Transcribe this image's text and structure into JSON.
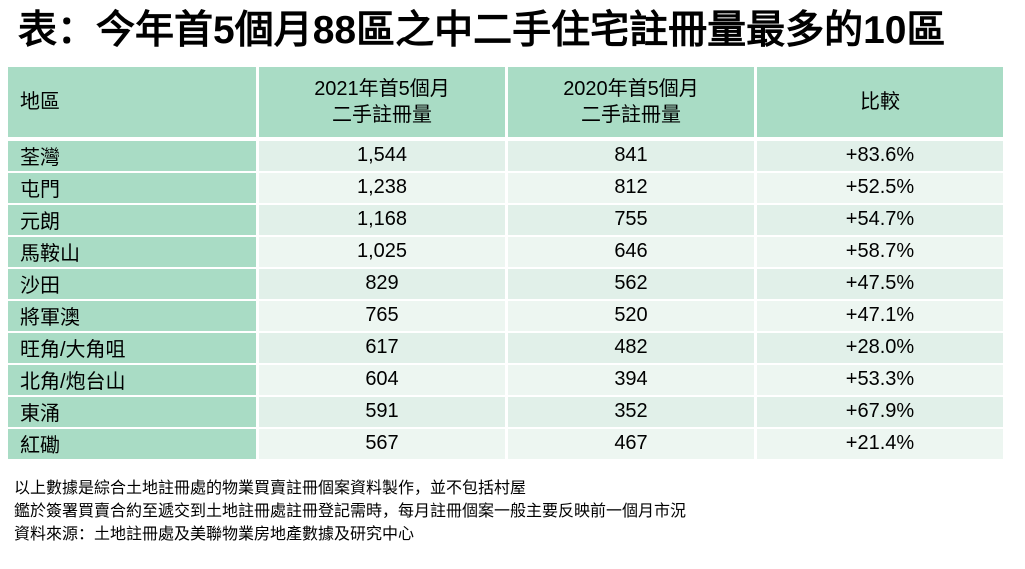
{
  "page": {
    "title": "表：今年首5個月88區之中二手住宅註冊量最多的10區",
    "background": "#ffffff"
  },
  "colors": {
    "header_bg": "#a9dcc5",
    "district_column_bg": "#a9dcc5",
    "row_odd_bg": "#e1f0e9",
    "row_even_bg": "#edf6f1",
    "text": "#000000"
  },
  "table": {
    "headers": {
      "district": "地區",
      "y2021": "2021年首5個月\n二手註冊量",
      "y2020": "2020年首5個月\n二手註冊量",
      "comparison": "比較"
    }
  },
  "chart_data": {
    "type": "table",
    "title": "表：今年首5個月88區之中二手住宅註冊量最多的10區",
    "columns": [
      "地區",
      "2021年首5個月二手註冊量",
      "2020年首5個月二手註冊量",
      "比較"
    ],
    "rows": [
      {
        "district": "荃灣",
        "y2021": "1,544",
        "y2020": "841",
        "change": "+83.6%"
      },
      {
        "district": "屯門",
        "y2021": "1,238",
        "y2020": "812",
        "change": "+52.5%"
      },
      {
        "district": "元朗",
        "y2021": "1,168",
        "y2020": "755",
        "change": "+54.7%"
      },
      {
        "district": "馬鞍山",
        "y2021": "1,025",
        "y2020": "646",
        "change": "+58.7%"
      },
      {
        "district": "沙田",
        "y2021": "829",
        "y2020": "562",
        "change": "+47.5%"
      },
      {
        "district": "將軍澳",
        "y2021": "765",
        "y2020": "520",
        "change": "+47.1%"
      },
      {
        "district": "旺角/大角咀",
        "y2021": "617",
        "y2020": "482",
        "change": "+28.0%"
      },
      {
        "district": "北角/炮台山",
        "y2021": "604",
        "y2020": "394",
        "change": "+53.3%"
      },
      {
        "district": "東涌",
        "y2021": "591",
        "y2020": "352",
        "change": "+67.9%"
      },
      {
        "district": "紅磡",
        "y2021": "567",
        "y2020": "467",
        "change": "+21.4%"
      }
    ]
  },
  "footnotes": [
    "以上數據是綜合土地註冊處的物業買賣註冊個案資料製作，並不包括村屋",
    "鑑於簽署買賣合約至遞交到土地註冊處註冊登記需時，每月註冊個案一般主要反映前一個月市況",
    "資料來源：土地註冊處及美聯物業房地產數據及研究中心"
  ]
}
